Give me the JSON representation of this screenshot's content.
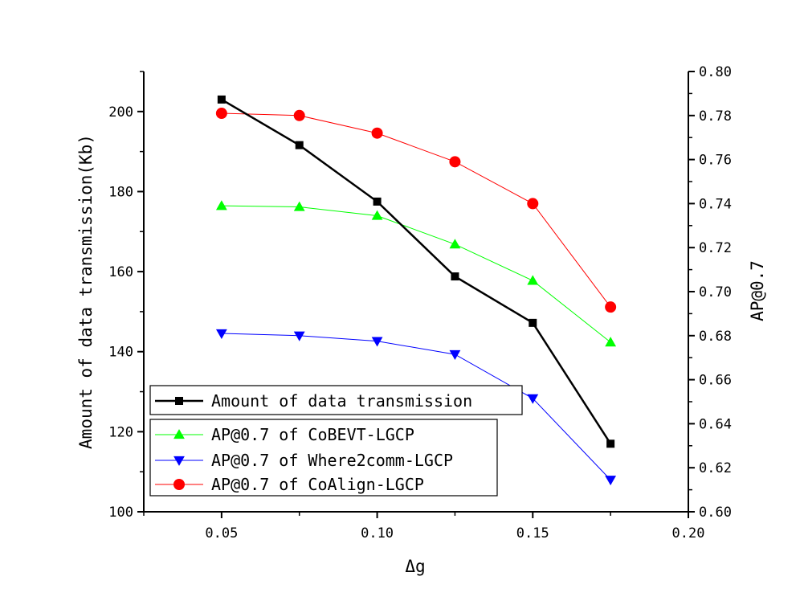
{
  "chart_data": {
    "type": "line",
    "xlabel": "Δg",
    "ylabel_left": "Amount of data transmission(Kb)",
    "ylabel_right": "AP@0.7",
    "xlim": [
      0.025,
      0.2
    ],
    "ylim_left": [
      100,
      210
    ],
    "ylim_right": [
      0.6,
      0.8
    ],
    "x_ticks": [
      "0.05",
      "0.10",
      "0.15",
      "0.20"
    ],
    "y_left_ticks": [
      "100",
      "120",
      "140",
      "160",
      "180",
      "200"
    ],
    "y_right_ticks": [
      "0.60",
      "0.62",
      "0.64",
      "0.66",
      "0.68",
      "0.70",
      "0.72",
      "0.74",
      "0.76",
      "0.78",
      "0.80"
    ],
    "grid": false,
    "legend_position": "bottom-left",
    "x": [
      0.05,
      0.075,
      0.1,
      0.125,
      0.15,
      0.175
    ],
    "series": [
      {
        "name": "Amount of data transmission",
        "axis": "left",
        "color": "#000000",
        "marker": "square",
        "values": [
          203,
          191.6,
          177.5,
          158.8,
          147.2,
          117
        ]
      },
      {
        "name": "AP@0.7 of CoBEVT-LGCP",
        "axis": "right",
        "color": "#00ff00",
        "marker": "triangle-up",
        "values": [
          0.739,
          0.7385,
          0.7345,
          0.7215,
          0.705,
          0.677
        ]
      },
      {
        "name": "AP@0.7 of Where2comm-LGCP",
        "axis": "right",
        "color": "#0000ff",
        "marker": "triangle-down",
        "values": [
          0.681,
          0.68,
          0.6775,
          0.6715,
          0.6515,
          0.6145
        ]
      },
      {
        "name": "AP@0.7 of CoAlign-LGCP",
        "axis": "right",
        "color": "#ff0000",
        "marker": "circle",
        "values": [
          0.781,
          0.78,
          0.772,
          0.759,
          0.74,
          0.693
        ]
      }
    ]
  }
}
